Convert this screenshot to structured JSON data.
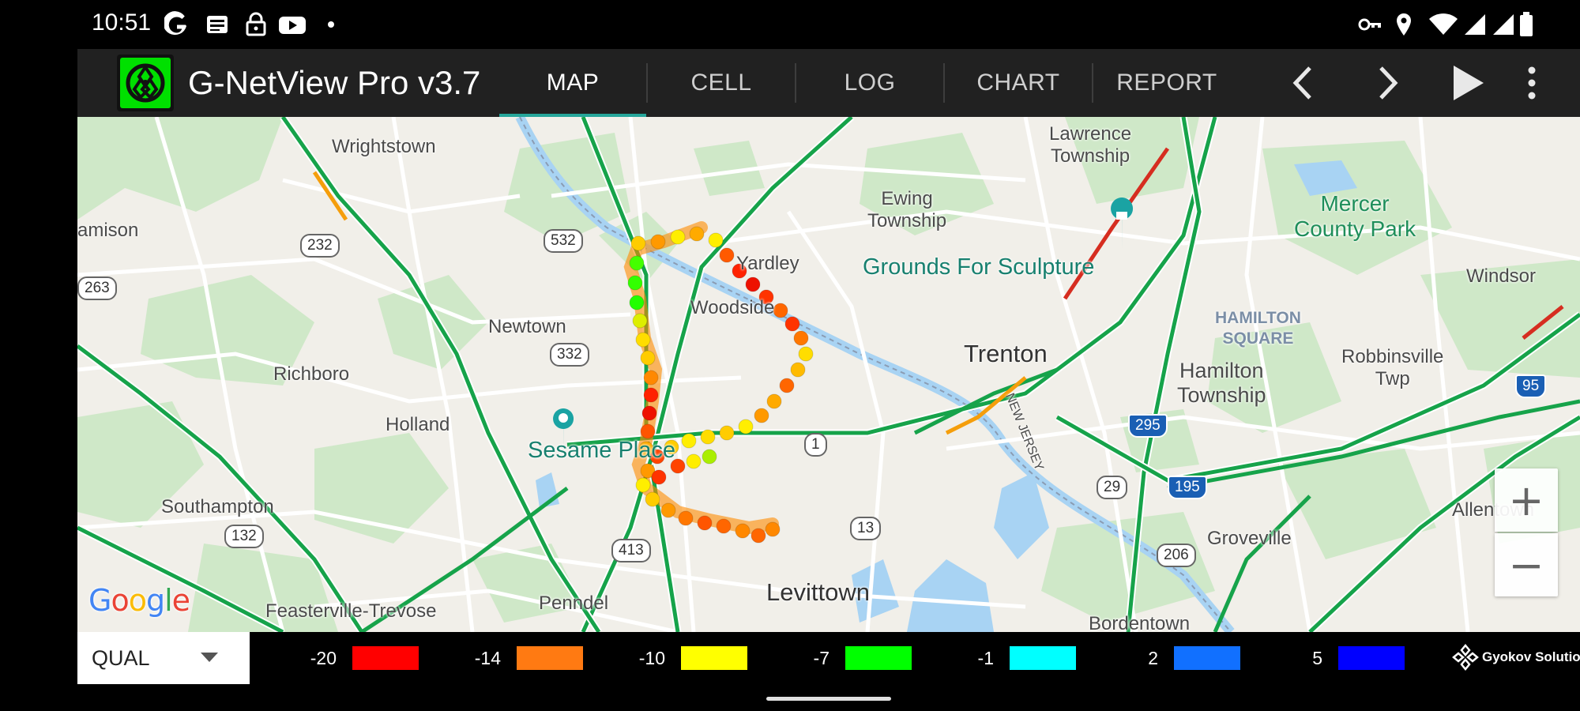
{
  "status_bar": {
    "time": "10:51",
    "left_icons": [
      "google-icon",
      "news-icon",
      "lock-icon",
      "youtube-icon",
      "dot-icon"
    ],
    "right_icons": [
      "vpn-key-icon",
      "location-icon",
      "wifi-icon",
      "signal-icon",
      "signal-icon",
      "battery-icon"
    ]
  },
  "app_bar": {
    "title": "G-NetView Pro v3.7",
    "tabs": [
      {
        "label": "MAP",
        "active": true
      },
      {
        "label": "CELL",
        "active": false
      },
      {
        "label": "LOG",
        "active": false
      },
      {
        "label": "CHART",
        "active": false
      },
      {
        "label": "REPORT",
        "active": false
      }
    ],
    "actions": [
      "chevron-left-icon",
      "chevron-right-icon",
      "play-icon",
      "more-vert-icon"
    ]
  },
  "map": {
    "labels": {
      "wrightstown": "Wrightstown",
      "amison": "amison",
      "newtown": "Newtown",
      "richboro": "Richboro",
      "holland": "Holland",
      "southampton": "Southampton",
      "feasterville": "Feasterville-Trevose",
      "penndel": "Penndel",
      "levittown": "Levittown",
      "woodside": "Woodside",
      "yardley": "Yardley",
      "sesame": "Sesame Place",
      "ewing": "Ewing\nTownship",
      "lawrence": "Lawrence\nTownship",
      "grounds": "Grounds For Sculpture",
      "mercer": "Mercer\nCounty Park",
      "windsor": "Windsor",
      "hamilton_square": "HAMILTON\nSQUARE",
      "trenton": "Trenton",
      "hamilton_twp": "Hamilton\nTownship",
      "robbinsville": "Robbinsville\nTwp",
      "allentown": "Allentown",
      "groveville": "Groveville",
      "bordentown": "Bordentown",
      "new_jersey": "NEW JERSEY"
    },
    "shields": {
      "r232": "232",
      "r263": "263",
      "r532": "532",
      "r332": "332",
      "r132": "132",
      "r413": "413",
      "r1": "1",
      "r13": "13",
      "r29": "29",
      "r295": "295",
      "r195": "195",
      "r206": "206",
      "r95": "95"
    },
    "zoom_in": "+",
    "zoom_out": "−",
    "attribution": "Google"
  },
  "legend": {
    "metric": "QUAL",
    "stops": [
      {
        "value": "-20",
        "color": "#ff0000"
      },
      {
        "value": "-14",
        "color": "#ff7a12"
      },
      {
        "value": "-10",
        "color": "#ffff00"
      },
      {
        "value": "-7",
        "color": "#00ff00"
      },
      {
        "value": "-1",
        "color": "#00ffff"
      },
      {
        "value": "2",
        "color": "#1170ff"
      },
      {
        "value": "5",
        "color": "#0000ff"
      }
    ],
    "vendor": "Gyokov Solutions"
  },
  "colors": {
    "app_bar_bg": "#212121",
    "tab_indicator": "#26a69a",
    "logo_green": "#00e000"
  }
}
